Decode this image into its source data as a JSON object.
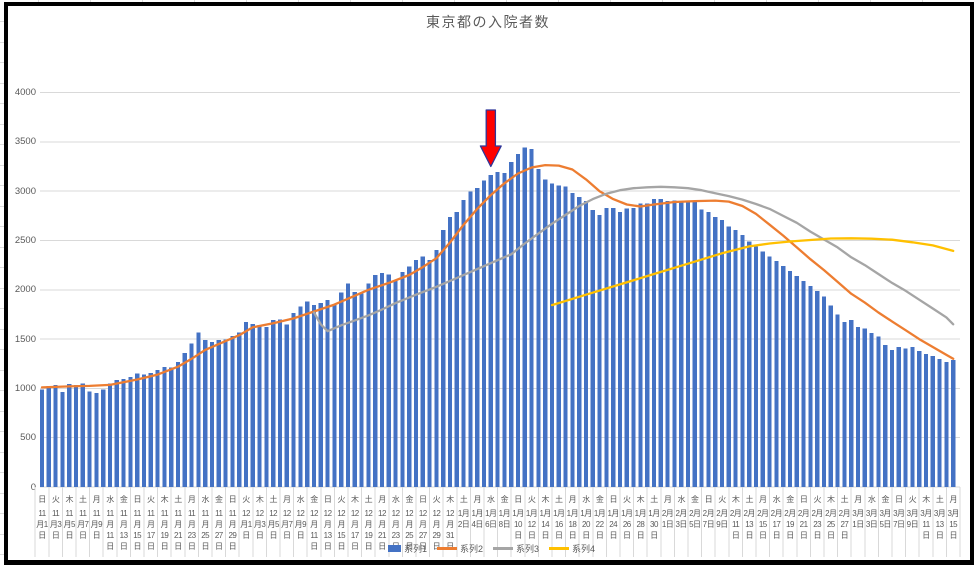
{
  "title": "東京都の入院者数",
  "annotation": {
    "shape": "down-arrow",
    "fill": "#FF0000",
    "outline": "#2F3699",
    "day_index": 66,
    "points_at": "1月6日"
  },
  "legend": {
    "items": [
      {
        "label": "系列1",
        "marker": "bar",
        "color": "#4472C4"
      },
      {
        "label": "系列2",
        "marker": "line",
        "color": "#ED7D31"
      },
      {
        "label": "系列3",
        "marker": "line",
        "color": "#A5A5A5"
      },
      {
        "label": "系列4",
        "marker": "line",
        "color": "#FFC000"
      }
    ]
  },
  "chart_data": {
    "type": "bar",
    "title": "東京都の入院者数",
    "xlabel": "",
    "ylabel": "",
    "ylim": [
      0,
      4000
    ],
    "yticks": [
      0,
      500,
      1000,
      1500,
      2000,
      2500,
      3000,
      3500,
      4000
    ],
    "grid": "horizontal",
    "legend_position": "bottom-center",
    "categories_note": "daily categories from 11月1日(日) to 3月15日(月), axis labels every 2 days",
    "x_tick_labels": [
      "日 11月1日",
      "火 11月3日",
      "木 11月5日",
      "土 11月7日",
      "月 11月9日",
      "水 11月11日",
      "金 11月13日",
      "日 11月15日",
      "火 11月17日",
      "木 11月19日",
      "土 11月21日",
      "月 11月23日",
      "水 11月25日",
      "金 11月27日",
      "日 11月29日",
      "火 12月1日",
      "木 12月3日",
      "土 12月5日",
      "月 12月7日",
      "水 12月9日",
      "金 12月11日",
      "日 12月13日",
      "火 12月15日",
      "木 12月17日",
      "土 12月19日",
      "月 12月21日",
      "水 12月23日",
      "金 12月25日",
      "日 12月27日",
      "火 12月29日",
      "木 12月31日",
      "土 1月2日",
      "月 1月4日",
      "水 1月6日",
      "金 1月8日",
      "日 1月10日",
      "火 1月12日",
      "木 1月14日",
      "土 1月16日",
      "月 1月18日",
      "水 1月20日",
      "金 1月22日",
      "日 1月24日",
      "火 1月26日",
      "木 1月28日",
      "土 1月30日",
      "月 2月1日",
      "水 2月3日",
      "金 2月5日",
      "日 2月7日",
      "火 2月9日",
      "木 2月11日",
      "土 2月13日",
      "月 2月15日",
      "水 2月17日",
      "金 2月19日",
      "日 2月21日",
      "火 2月23日",
      "木 2月25日",
      "土 2月27日",
      "月 3月1日",
      "水 3月3日",
      "金 3月5日",
      "日 3月7日",
      "火 3月9日",
      "木 3月11日",
      "土 3月13日",
      "月 3月15日"
    ],
    "series": [
      {
        "name": "系列1",
        "type": "bar",
        "color": "#4472C4",
        "values": [
          990,
          1025,
          1035,
          965,
          1045,
          1035,
          1050,
          970,
          955,
          990,
          1050,
          1085,
          1095,
          1115,
          1150,
          1140,
          1155,
          1185,
          1215,
          1210,
          1270,
          1360,
          1455,
          1565,
          1490,
          1470,
          1490,
          1495,
          1530,
          1565,
          1675,
          1655,
          1645,
          1625,
          1695,
          1700,
          1650,
          1765,
          1830,
          1880,
          1845,
          1865,
          1895,
          1845,
          1975,
          2065,
          1980,
          1965,
          2065,
          2150,
          2170,
          2155,
          2100,
          2180,
          2235,
          2300,
          2340,
          2300,
          2405,
          2605,
          2740,
          2790,
          2910,
          2995,
          3030,
          3110,
          3165,
          3195,
          3185,
          3295,
          3375,
          3445,
          3430,
          3225,
          3120,
          3080,
          3060,
          3050,
          2980,
          2940,
          2900,
          2810,
          2760,
          2830,
          2830,
          2790,
          2825,
          2830,
          2875,
          2875,
          2920,
          2920,
          2900,
          2905,
          2900,
          2900,
          2900,
          2815,
          2790,
          2740,
          2710,
          2640,
          2605,
          2555,
          2490,
          2440,
          2390,
          2340,
          2290,
          2240,
          2190,
          2140,
          2090,
          2040,
          1990,
          1930,
          1840,
          1750,
          1675,
          1695,
          1625,
          1610,
          1560,
          1525,
          1440,
          1390,
          1420,
          1405,
          1420,
          1380,
          1350,
          1330,
          1300,
          1270,
          1290
        ]
      },
      {
        "name": "系列2",
        "type": "line",
        "color": "#ED7D31",
        "points": [
          [
            0,
            1010
          ],
          [
            4,
            1020
          ],
          [
            7,
            1025
          ],
          [
            10,
            1035
          ],
          [
            14,
            1090
          ],
          [
            17,
            1140
          ],
          [
            20,
            1220
          ],
          [
            22,
            1300
          ],
          [
            24,
            1390
          ],
          [
            27,
            1480
          ],
          [
            29,
            1540
          ],
          [
            31,
            1620
          ],
          [
            34,
            1660
          ],
          [
            37,
            1710
          ],
          [
            40,
            1780
          ],
          [
            43,
            1850
          ],
          [
            45,
            1910
          ],
          [
            48,
            2000
          ],
          [
            51,
            2070
          ],
          [
            54,
            2150
          ],
          [
            56,
            2230
          ],
          [
            58,
            2320
          ],
          [
            60,
            2480
          ],
          [
            62,
            2660
          ],
          [
            64,
            2820
          ],
          [
            66,
            2960
          ],
          [
            68,
            3080
          ],
          [
            70,
            3180
          ],
          [
            72,
            3240
          ],
          [
            74,
            3265
          ],
          [
            76,
            3260
          ],
          [
            78,
            3220
          ],
          [
            80,
            3120
          ],
          [
            82,
            3000
          ],
          [
            84,
            2920
          ],
          [
            86,
            2865
          ],
          [
            88,
            2845
          ],
          [
            90,
            2865
          ],
          [
            93,
            2890
          ],
          [
            96,
            2900
          ],
          [
            99,
            2905
          ],
          [
            101,
            2895
          ],
          [
            103,
            2850
          ],
          [
            105,
            2770
          ],
          [
            107,
            2660
          ],
          [
            109,
            2550
          ],
          [
            111,
            2430
          ],
          [
            113,
            2310
          ],
          [
            115,
            2200
          ],
          [
            117,
            2080
          ],
          [
            119,
            1960
          ],
          [
            121,
            1870
          ],
          [
            123,
            1770
          ],
          [
            125,
            1680
          ],
          [
            127,
            1590
          ],
          [
            129,
            1500
          ],
          [
            131,
            1420
          ],
          [
            133,
            1340
          ],
          [
            134,
            1300
          ]
        ]
      },
      {
        "name": "系列3",
        "type": "line",
        "color": "#A5A5A5",
        "points": [
          [
            40,
            1770
          ],
          [
            41,
            1650
          ],
          [
            42,
            1580
          ],
          [
            44,
            1640
          ],
          [
            46,
            1690
          ],
          [
            48,
            1740
          ],
          [
            50,
            1800
          ],
          [
            52,
            1865
          ],
          [
            55,
            1950
          ],
          [
            58,
            2030
          ],
          [
            61,
            2120
          ],
          [
            64,
            2210
          ],
          [
            67,
            2300
          ],
          [
            69,
            2360
          ],
          [
            71,
            2470
          ],
          [
            73,
            2570
          ],
          [
            75,
            2670
          ],
          [
            77,
            2760
          ],
          [
            79,
            2850
          ],
          [
            81,
            2920
          ],
          [
            83,
            2975
          ],
          [
            85,
            3010
          ],
          [
            87,
            3030
          ],
          [
            89,
            3040
          ],
          [
            91,
            3045
          ],
          [
            93,
            3040
          ],
          [
            95,
            3030
          ],
          [
            97,
            3010
          ],
          [
            99,
            2980
          ],
          [
            101,
            2950
          ],
          [
            103,
            2915
          ],
          [
            105,
            2870
          ],
          [
            107,
            2820
          ],
          [
            109,
            2750
          ],
          [
            111,
            2680
          ],
          [
            113,
            2590
          ],
          [
            115,
            2510
          ],
          [
            117,
            2430
          ],
          [
            119,
            2330
          ],
          [
            121,
            2250
          ],
          [
            123,
            2160
          ],
          [
            125,
            2070
          ],
          [
            127,
            1990
          ],
          [
            129,
            1900
          ],
          [
            131,
            1810
          ],
          [
            133,
            1720
          ],
          [
            134,
            1650
          ]
        ]
      },
      {
        "name": "系列4",
        "type": "line",
        "color": "#FFC000",
        "points": [
          [
            75,
            1845
          ],
          [
            80,
            1950
          ],
          [
            85,
            2055
          ],
          [
            90,
            2160
          ],
          [
            95,
            2265
          ],
          [
            100,
            2370
          ],
          [
            104,
            2440
          ],
          [
            107,
            2470
          ],
          [
            110,
            2490
          ],
          [
            113,
            2505
          ],
          [
            116,
            2520
          ],
          [
            119,
            2522
          ],
          [
            122,
            2518
          ],
          [
            125,
            2508
          ],
          [
            128,
            2482
          ],
          [
            131,
            2450
          ],
          [
            134,
            2395
          ]
        ]
      }
    ]
  }
}
